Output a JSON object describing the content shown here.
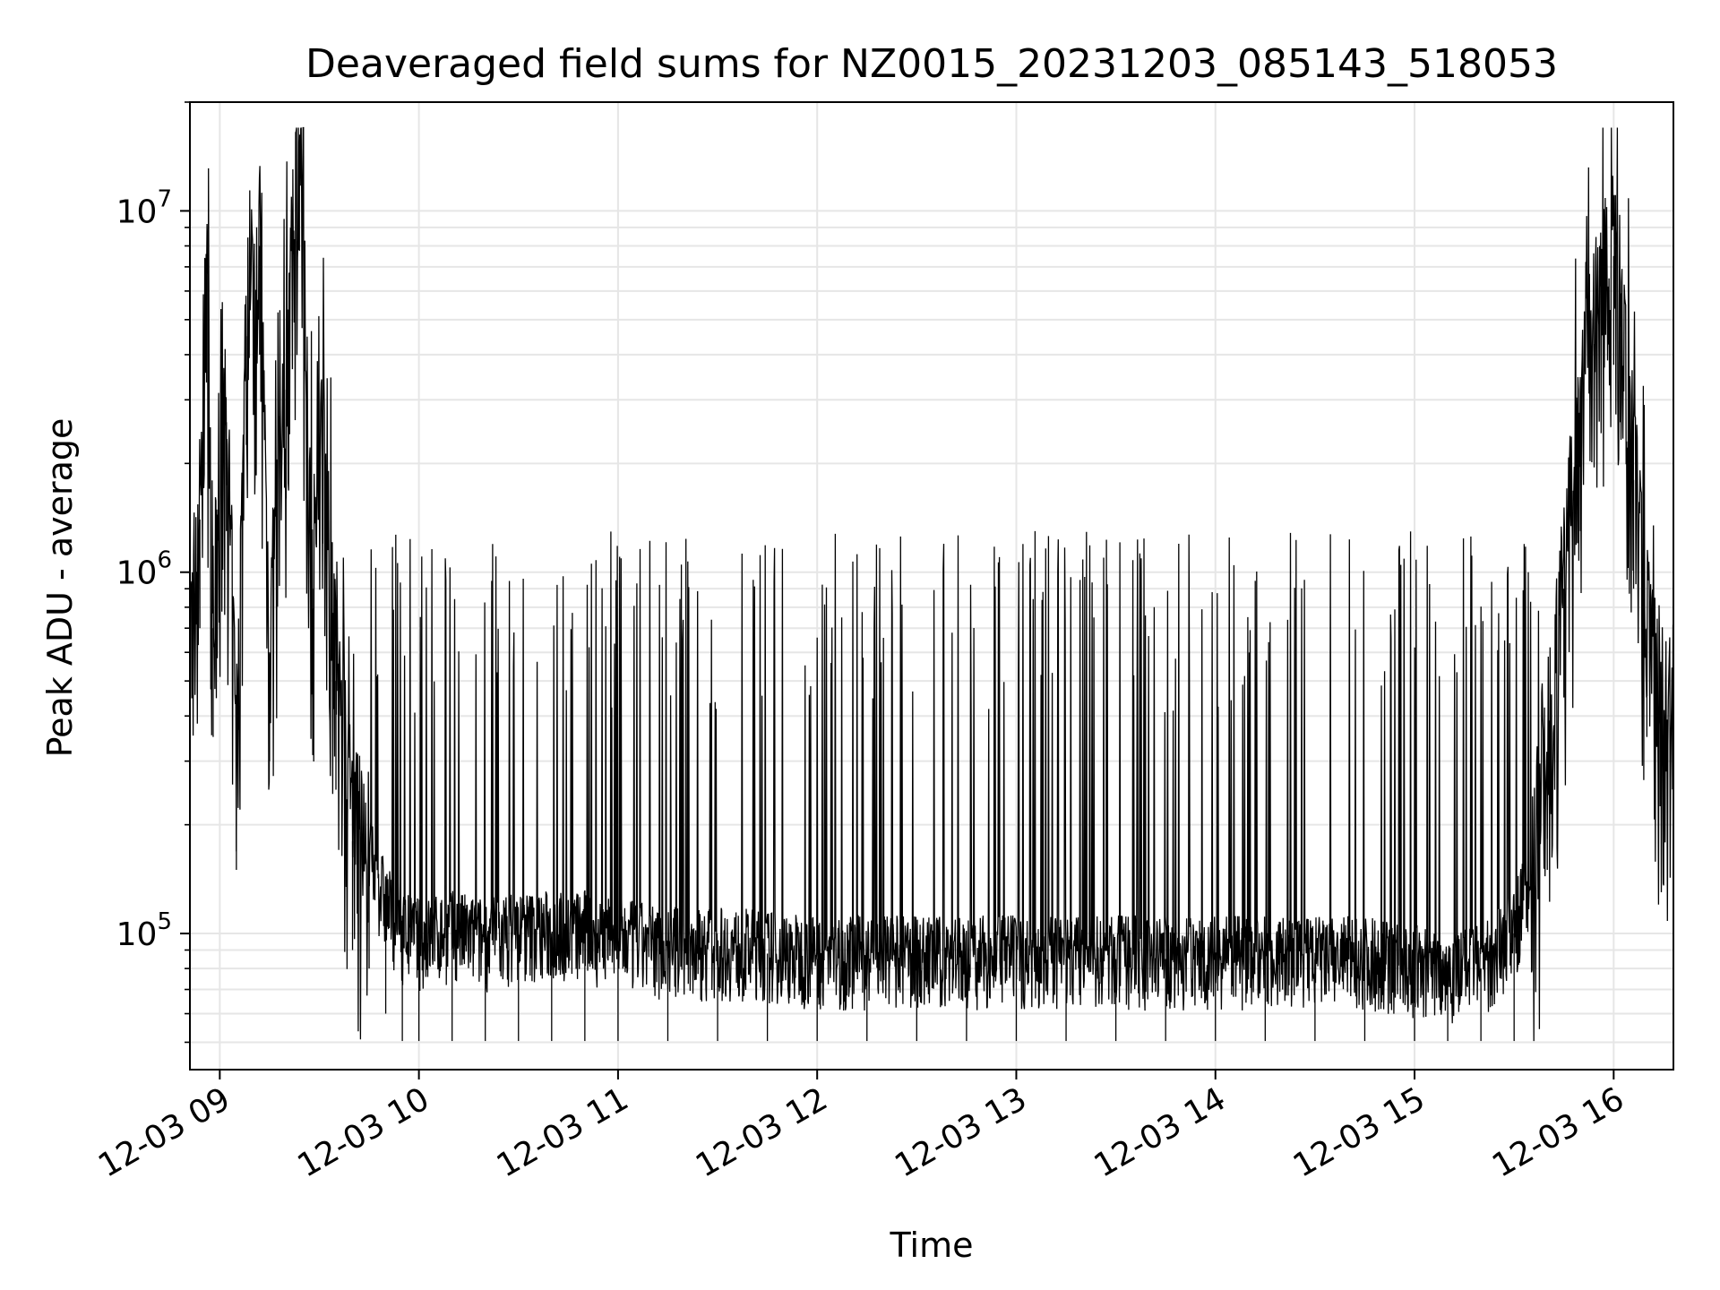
{
  "chart_data": {
    "type": "line",
    "title": "Deaveraged field sums for NZ0015_20231203_085143_518053",
    "xlabel": "Time",
    "ylabel": "Peak ADU - average",
    "yscale": "log",
    "ylim": [
      42000,
      20000000
    ],
    "xlim": [
      "2023-12-03 08:51",
      "2023-12-03 16:18"
    ],
    "grid": true,
    "line_color": "#000000",
    "grid_color": "#e6e6e6",
    "x_ticks": [
      "2023-12-03 09:00",
      "2023-12-03 10:00",
      "2023-12-03 11:00",
      "2023-12-03 12:00",
      "2023-12-03 13:00",
      "2023-12-03 14:00",
      "2023-12-03 15:00",
      "2023-12-03 16:00"
    ],
    "x_tick_labels": [
      "12-03 09",
      "12-03 10",
      "12-03 11",
      "12-03 12",
      "12-03 13",
      "12-03 14",
      "12-03 15",
      "12-03 16"
    ],
    "y_ticks": [
      {
        "value": 100000,
        "base": "10",
        "exp": "5"
      },
      {
        "value": 1000000,
        "base": "10",
        "exp": "6"
      },
      {
        "value": 10000000,
        "base": "10",
        "exp": "7"
      }
    ],
    "series": [
      {
        "points": [
          [
            "2023-12-03 08:51",
            600000
          ],
          [
            "2023-12-03 08:54",
            1400000
          ],
          [
            "2023-12-03 08:56",
            6700000
          ],
          [
            "2023-12-03 08:58",
            700000
          ],
          [
            "2023-12-03 09:02",
            2600000
          ],
          [
            "2023-12-03 09:05",
            300000
          ],
          [
            "2023-12-03 09:08",
            4500000
          ],
          [
            "2023-12-03 09:12",
            8000000
          ],
          [
            "2023-12-03 09:15",
            600000
          ],
          [
            "2023-12-03 09:20",
            3200000
          ],
          [
            "2023-12-03 09:24",
            15500000
          ],
          [
            "2023-12-03 09:28",
            900000
          ],
          [
            "2023-12-03 09:31",
            2400000
          ],
          [
            "2023-12-03 09:35",
            500000
          ],
          [
            "2023-12-03 09:40",
            180000
          ],
          [
            "2023-12-03 09:45",
            160000
          ],
          [
            "2023-12-03 09:50",
            120000
          ],
          [
            "2023-12-03 09:55",
            100000
          ],
          [
            "2023-12-03 10:00",
            95000
          ],
          [
            "2023-12-03 10:10",
            100000
          ],
          [
            "2023-12-03 10:20",
            95000
          ],
          [
            "2023-12-03 10:30",
            100000
          ],
          [
            "2023-12-03 10:40",
            100000
          ],
          [
            "2023-12-03 10:50",
            100000
          ],
          [
            "2023-12-03 11:00",
            95000
          ],
          [
            "2023-12-03 11:15",
            90000
          ],
          [
            "2023-12-03 11:30",
            90000
          ],
          [
            "2023-12-03 11:45",
            88000
          ],
          [
            "2023-12-03 12:00",
            85000
          ],
          [
            "2023-12-03 12:15",
            85000
          ],
          [
            "2023-12-03 12:30",
            85000
          ],
          [
            "2023-12-03 12:45",
            85000
          ],
          [
            "2023-12-03 13:00",
            85000
          ],
          [
            "2023-12-03 13:15",
            85000
          ],
          [
            "2023-12-03 13:30",
            85000
          ],
          [
            "2023-12-03 13:45",
            85000
          ],
          [
            "2023-12-03 14:00",
            85000
          ],
          [
            "2023-12-03 14:15",
            85000
          ],
          [
            "2023-12-03 14:30",
            85000
          ],
          [
            "2023-12-03 14:45",
            85000
          ],
          [
            "2023-12-03 15:00",
            80000
          ],
          [
            "2023-12-03 15:10",
            78000
          ],
          [
            "2023-12-03 15:20",
            80000
          ],
          [
            "2023-12-03 15:30",
            100000
          ],
          [
            "2023-12-03 15:36",
            160000
          ],
          [
            "2023-12-03 15:40",
            300000
          ],
          [
            "2023-12-03 15:45",
            900000
          ],
          [
            "2023-12-03 15:50",
            2600000
          ],
          [
            "2023-12-03 15:55",
            5200000
          ],
          [
            "2023-12-03 16:00",
            7500000
          ],
          [
            "2023-12-03 16:02",
            5200000
          ],
          [
            "2023-12-03 16:06",
            1800000
          ],
          [
            "2023-12-03 16:10",
            700000
          ],
          [
            "2023-12-03 16:14",
            450000
          ],
          [
            "2023-12-03 16:18",
            400000
          ]
        ]
      }
    ]
  }
}
